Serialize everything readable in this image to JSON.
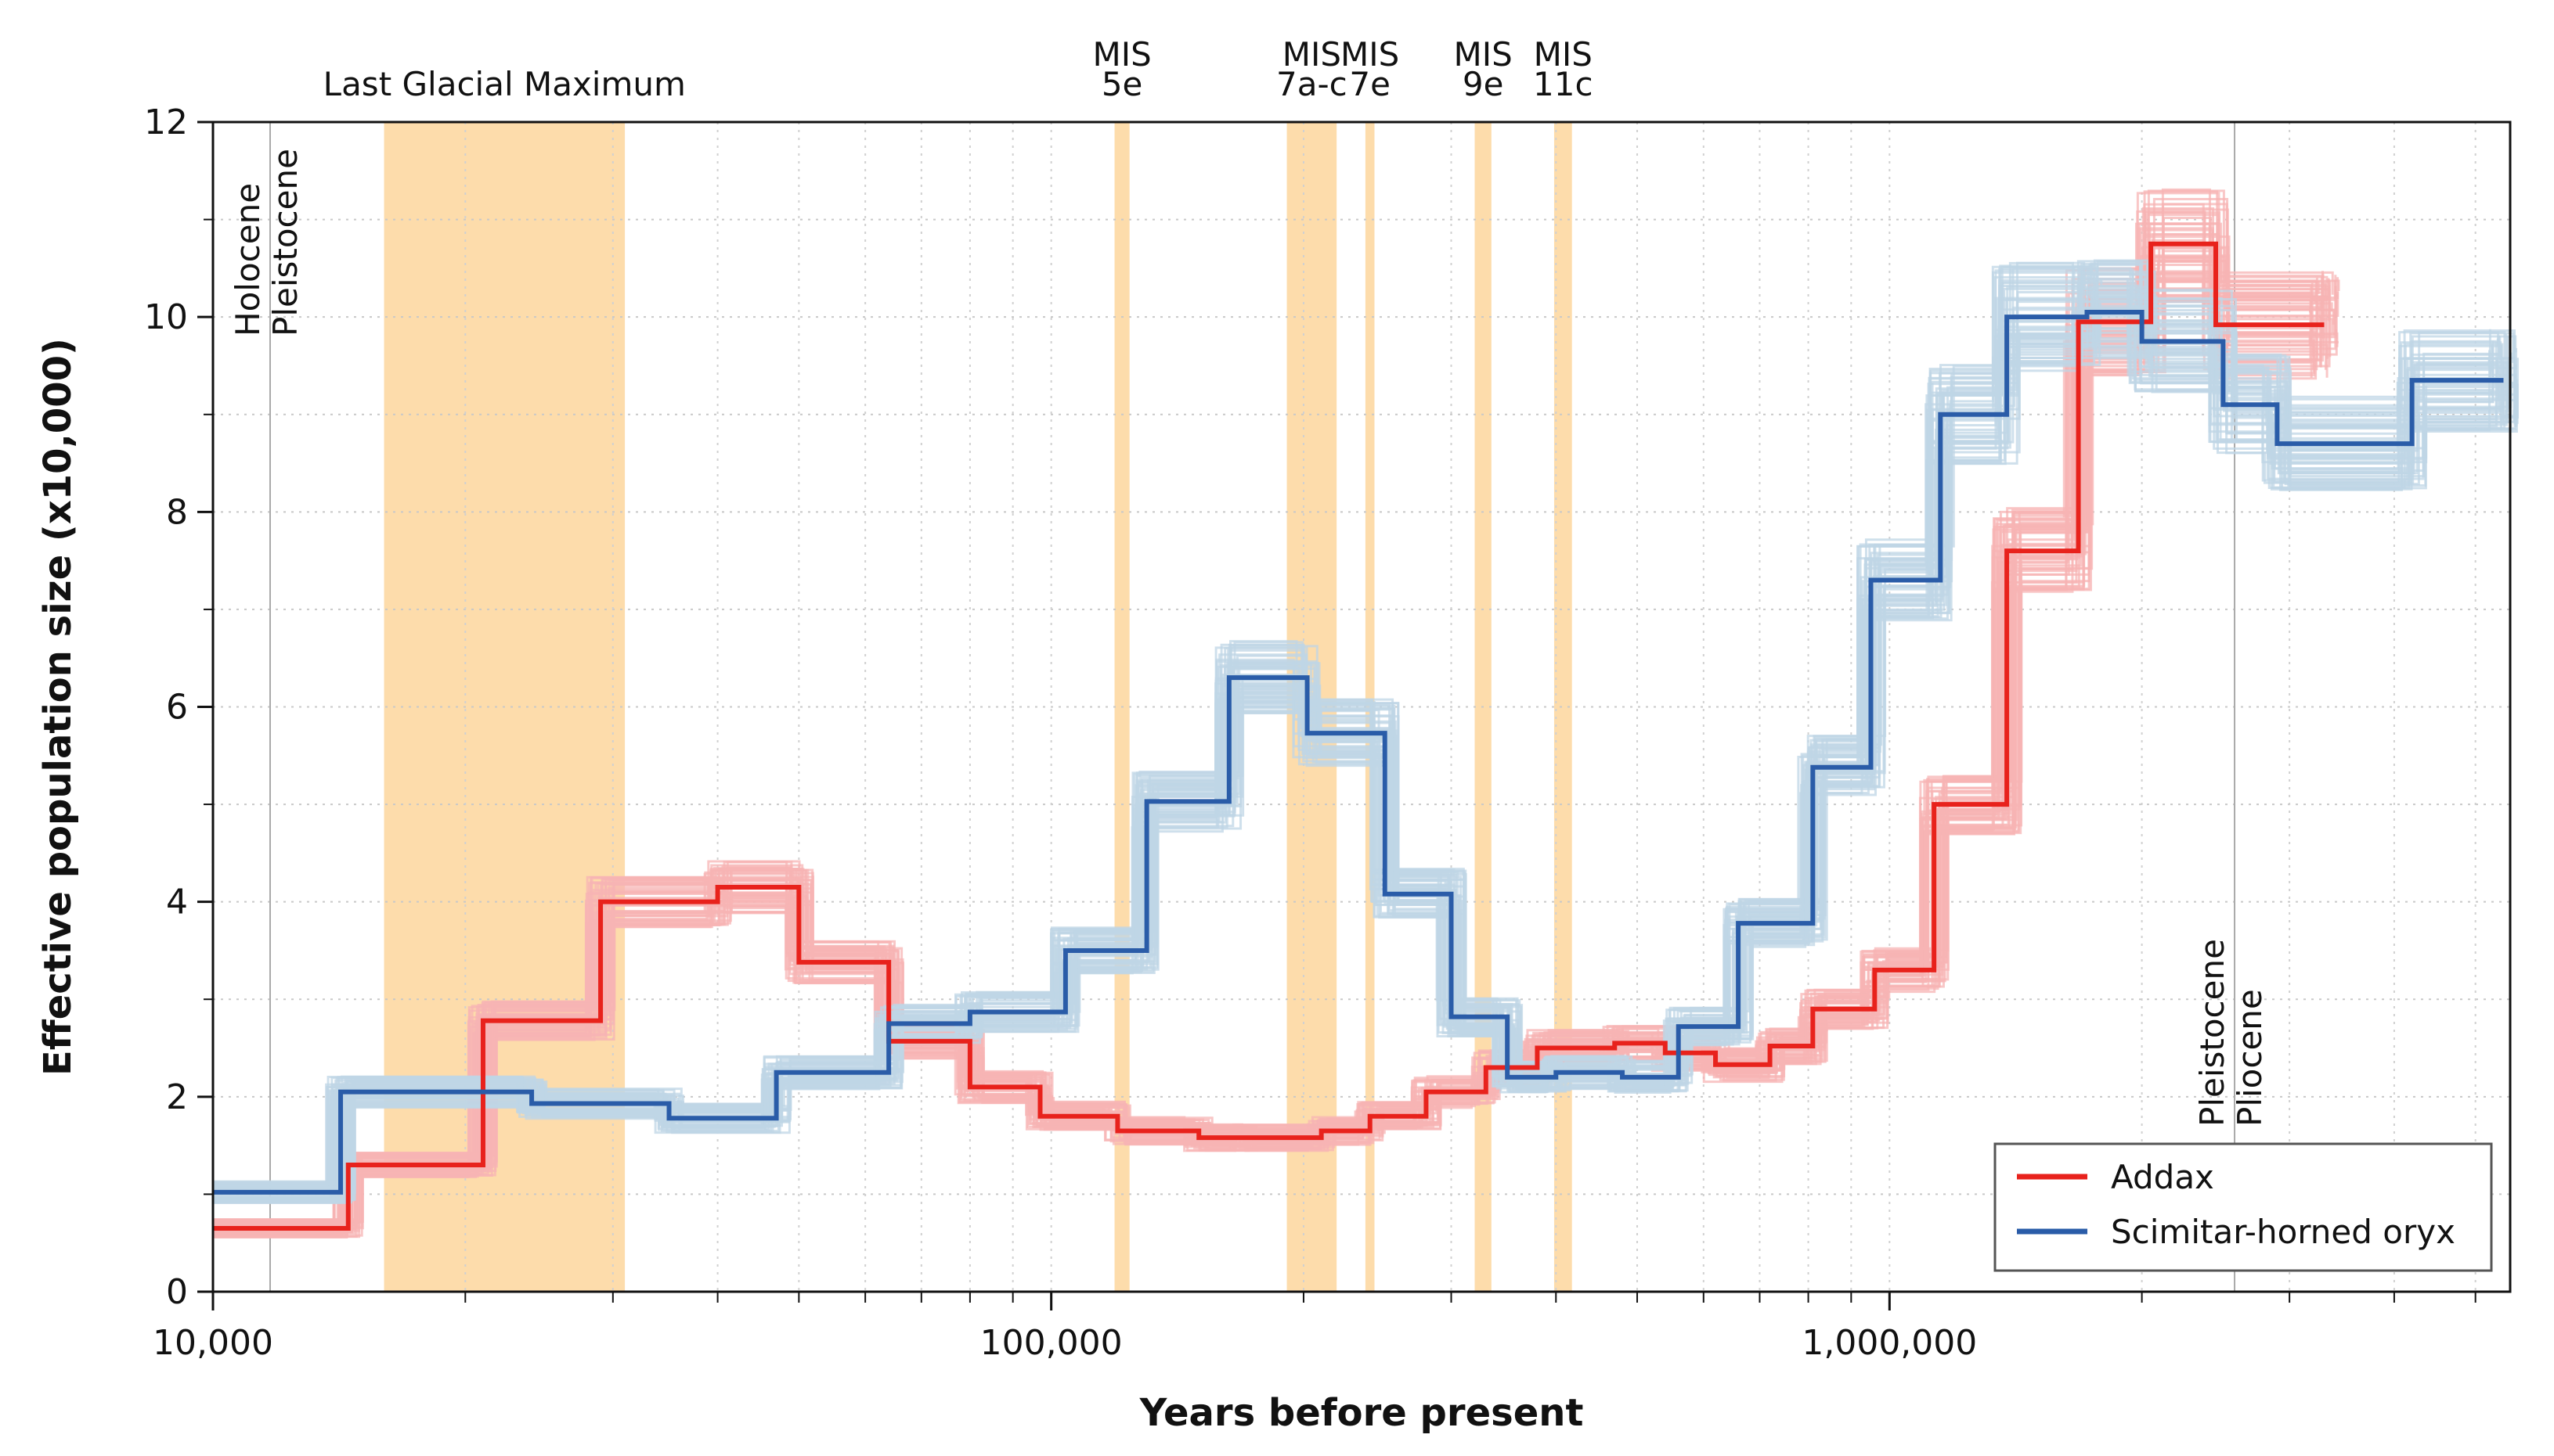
{
  "chart_data": {
    "type": "line",
    "xscale": "log",
    "xlabel": "Years before present",
    "ylabel": "Effective population size (x10,000)",
    "xlim": [
      10000,
      5500000
    ],
    "ylim": [
      0,
      12
    ],
    "x_ticks": [
      10000,
      100000,
      1000000
    ],
    "x_tick_labels": [
      "10,000",
      "100,000",
      "1,000,000"
    ],
    "y_ticks": [
      0,
      2,
      4,
      6,
      8,
      10,
      12
    ],
    "y_tick_labels": [
      "0",
      "2",
      "4",
      "6",
      "8",
      "10",
      "12"
    ],
    "grid": true,
    "shaded_periods": [
      {
        "name": "Last Glacial Maximum",
        "label_lines": [
          "Last Glacial Maximum"
        ],
        "x_start": 16000,
        "x_end": 31000
      },
      {
        "name": "MIS 5e",
        "label_lines": [
          "MIS",
          "5e"
        ],
        "x_start": 119000,
        "x_end": 124000
      },
      {
        "name": "MIS 7a-c",
        "label_lines": [
          "MIS",
          "7a-c"
        ],
        "x_start": 191000,
        "x_end": 219000
      },
      {
        "name": "MIS 7e",
        "label_lines": [
          "MIS",
          "7e"
        ],
        "x_start": 237000,
        "x_end": 243000
      },
      {
        "name": "MIS 9e",
        "label_lines": [
          "MIS",
          "9e"
        ],
        "x_start": 320000,
        "x_end": 335000
      },
      {
        "name": "MIS 11c",
        "label_lines": [
          "MIS",
          "11c"
        ],
        "x_start": 398000,
        "x_end": 418000
      }
    ],
    "boundaries": [
      {
        "x": 11700,
        "label_lines": [
          "Holocene",
          "Pleistocene"
        ]
      },
      {
        "x": 2580000,
        "label_lines": [
          "Pleistocene",
          "Pliocene"
        ]
      }
    ],
    "legend_position": "bottom-right",
    "series": [
      {
        "name": "Addax",
        "color": "#e8221c",
        "bootstrap_color": "#f7b4b4",
        "x": [
          10000,
          14500,
          21000,
          29000,
          40000,
          50000,
          64000,
          80000,
          97000,
          120000,
          150000,
          170000,
          210000,
          240000,
          280000,
          330000,
          380000,
          470000,
          540000,
          620000,
          720000,
          810000,
          960000,
          1130000,
          1380000,
          1680000,
          2050000,
          2450000,
          3300000
        ],
        "y": [
          0.65,
          1.3,
          2.78,
          4.0,
          4.15,
          3.38,
          2.57,
          2.1,
          1.8,
          1.65,
          1.58,
          1.58,
          1.65,
          1.8,
          2.05,
          2.3,
          2.5,
          2.55,
          2.45,
          2.33,
          2.52,
          2.9,
          3.3,
          5.0,
          7.6,
          9.95,
          10.75,
          9.92,
          9.92
        ]
      },
      {
        "name": "Scimitar-horned oryx",
        "color": "#2a5ca8",
        "bootstrap_color": "#bfd5e5",
        "x": [
          10000,
          14200,
          24000,
          35000,
          47000,
          64000,
          80000,
          104000,
          130000,
          163000,
          202000,
          250000,
          300000,
          350000,
          400000,
          480000,
          560000,
          660000,
          810000,
          950000,
          1150000,
          1380000,
          1720000,
          2000000,
          2500000,
          2900000,
          4200000,
          5400000
        ],
        "y": [
          1.02,
          2.05,
          1.93,
          1.78,
          2.25,
          2.75,
          2.87,
          3.5,
          5.03,
          6.3,
          5.73,
          4.08,
          2.82,
          2.2,
          2.25,
          2.2,
          2.72,
          3.78,
          5.38,
          7.3,
          9.0,
          10.0,
          10.05,
          9.75,
          9.1,
          8.7,
          9.35,
          9.35
        ]
      }
    ]
  }
}
